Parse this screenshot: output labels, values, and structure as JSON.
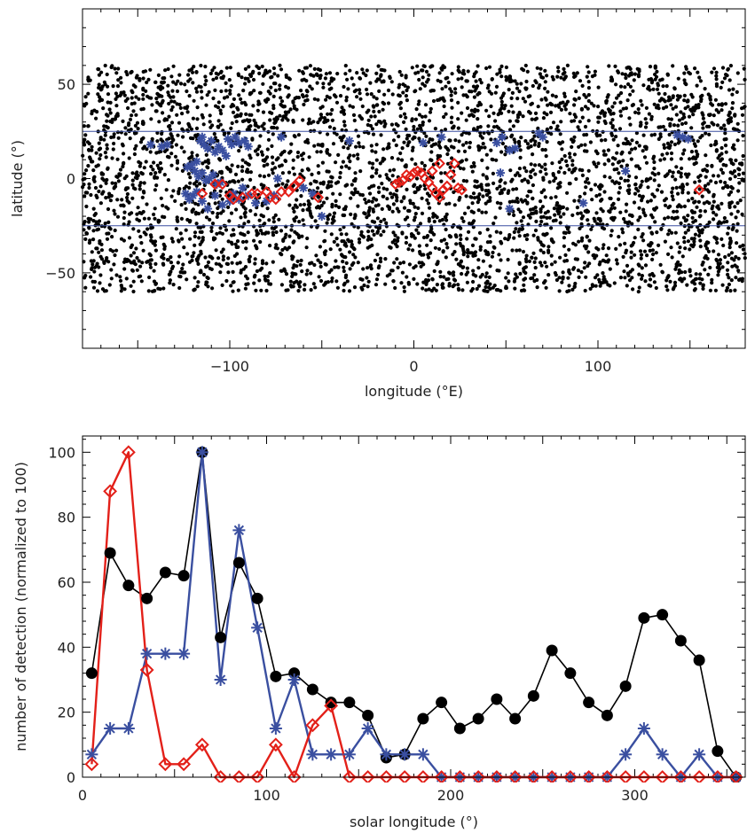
{
  "chart_data": [
    {
      "type": "scatter",
      "xlabel": "longitude (°E)",
      "ylabel": "latitude (°)",
      "xlim": [
        -180,
        180
      ],
      "ylim": [
        -90,
        90
      ],
      "xticks": [
        "-100",
        "0",
        "100"
      ],
      "yticks": [
        "-50",
        "0",
        "50"
      ],
      "reference_lines_y": [
        25,
        -25
      ],
      "colors": {
        "background_points": "#000000",
        "blue": "#3a4fa0",
        "red": "#e32019"
      },
      "background_points": {
        "marker": "filled-circle",
        "latitude_band": [
          -60,
          60
        ],
        "approx_count": 4200
      },
      "blue_points": [
        [
          -143,
          18
        ],
        [
          -137,
          17
        ],
        [
          -134,
          18
        ],
        [
          -123,
          6
        ],
        [
          -121,
          7
        ],
        [
          -118,
          9
        ],
        [
          -116,
          20
        ],
        [
          -115,
          22
        ],
        [
          -114,
          18
        ],
        [
          -112,
          16
        ],
        [
          -110,
          20
        ],
        [
          -108,
          14
        ],
        [
          -106,
          17
        ],
        [
          -104,
          15
        ],
        [
          -102,
          12
        ],
        [
          -101,
          21
        ],
        [
          -99,
          18
        ],
        [
          -97,
          22
        ],
        [
          -95,
          19
        ],
        [
          -92,
          20
        ],
        [
          -90,
          17
        ],
        [
          -119,
          4
        ],
        [
          -117,
          1
        ],
        [
          -115,
          3
        ],
        [
          -113,
          -1
        ],
        [
          -111,
          0
        ],
        [
          -109,
          2
        ],
        [
          -107,
          -3
        ],
        [
          -105,
          -2
        ],
        [
          -124,
          -8
        ],
        [
          -122,
          -11
        ],
        [
          -120,
          -9
        ],
        [
          -118,
          -7
        ],
        [
          -115,
          -12
        ],
        [
          -112,
          -16
        ],
        [
          -108,
          -9
        ],
        [
          -104,
          -14
        ],
        [
          -100,
          -12
        ],
        [
          -98,
          -8
        ],
        [
          -95,
          -11
        ],
        [
          -93,
          -5
        ],
        [
          -90,
          -9
        ],
        [
          -86,
          -13
        ],
        [
          -80,
          -12
        ],
        [
          -76,
          -9
        ],
        [
          -74,
          0
        ],
        [
          -72,
          22
        ],
        [
          -60,
          -5
        ],
        [
          -55,
          -8
        ],
        [
          -50,
          -20
        ],
        [
          -35,
          20
        ],
        [
          5,
          19
        ],
        [
          15,
          22
        ],
        [
          45,
          19
        ],
        [
          48,
          22
        ],
        [
          47,
          3
        ],
        [
          52,
          -16
        ],
        [
          52,
          15
        ],
        [
          55,
          16
        ],
        [
          68,
          24
        ],
        [
          70,
          22
        ],
        [
          92,
          -13
        ],
        [
          143,
          23
        ],
        [
          146,
          22
        ],
        [
          149,
          21
        ],
        [
          115,
          4
        ]
      ],
      "red_points": [
        [
          -115,
          -8
        ],
        [
          -108,
          -3
        ],
        [
          -104,
          -3
        ],
        [
          -100,
          -9
        ],
        [
          -98,
          -11
        ],
        [
          -93,
          -10
        ],
        [
          -88,
          -8
        ],
        [
          -85,
          -8
        ],
        [
          -80,
          -7
        ],
        [
          -78,
          -10
        ],
        [
          -75,
          -11
        ],
        [
          -72,
          -7
        ],
        [
          -68,
          -7
        ],
        [
          -65,
          -4
        ],
        [
          -62,
          -1
        ],
        [
          -52,
          -10
        ],
        [
          -10,
          -3
        ],
        [
          -8,
          -2
        ],
        [
          -6,
          -1
        ],
        [
          -4,
          2
        ],
        [
          -2,
          1
        ],
        [
          0,
          3
        ],
        [
          2,
          4
        ],
        [
          4,
          3
        ],
        [
          6,
          0
        ],
        [
          8,
          -2
        ],
        [
          10,
          -5
        ],
        [
          12,
          -8
        ],
        [
          14,
          -10
        ],
        [
          16,
          -6
        ],
        [
          18,
          -4
        ],
        [
          20,
          2
        ],
        [
          22,
          8
        ],
        [
          14,
          8
        ],
        [
          10,
          4
        ],
        [
          24,
          -5
        ],
        [
          26,
          -6
        ],
        [
          155,
          -6
        ]
      ]
    },
    {
      "type": "line",
      "xlabel": "solar longitude (°)",
      "ylabel": "number of detection (normalized to 100)",
      "xlim": [
        0,
        360
      ],
      "ylim": [
        0,
        105
      ],
      "xticks": [
        "0",
        "100",
        "200",
        "300"
      ],
      "yticks": [
        "0",
        "20",
        "40",
        "60",
        "80",
        "100"
      ],
      "series": [
        {
          "color": "#000000",
          "marker": "filled-circle",
          "x": [
            5,
            15,
            25,
            35,
            45,
            55,
            65,
            75,
            85,
            95,
            105,
            115,
            125,
            135,
            145,
            155,
            165,
            175,
            185,
            195,
            205,
            215,
            225,
            235,
            245,
            255,
            265,
            275,
            285,
            295,
            305,
            315,
            325,
            335,
            345,
            355
          ],
          "y": [
            32,
            69,
            59,
            55,
            63,
            62,
            100,
            43,
            66,
            55,
            31,
            32,
            27,
            23,
            23,
            19,
            6,
            7,
            18,
            23,
            15,
            18,
            24,
            18,
            25,
            39,
            32,
            23,
            19,
            28,
            49,
            50,
            42,
            36,
            8,
            0
          ]
        },
        {
          "color": "#3a4fa0",
          "marker": "asterisk",
          "x": [
            5,
            15,
            25,
            35,
            45,
            55,
            65,
            75,
            85,
            95,
            105,
            115,
            125,
            135,
            145,
            155,
            165,
            175,
            185,
            195,
            205,
            215,
            225,
            235,
            245,
            255,
            265,
            275,
            285,
            295,
            305,
            315,
            325,
            335,
            345,
            355
          ],
          "y": [
            7,
            15,
            15,
            38,
            38,
            38,
            100,
            30,
            76,
            46,
            15,
            30,
            7,
            7,
            7,
            15,
            7,
            7,
            7,
            0,
            0,
            0,
            0,
            0,
            0,
            0,
            0,
            0,
            0,
            7,
            15,
            7,
            0,
            7,
            0,
            0
          ]
        },
        {
          "color": "#e32019",
          "marker": "open-diamond",
          "x": [
            5,
            15,
            25,
            35,
            45,
            55,
            65,
            75,
            85,
            95,
            105,
            115,
            125,
            135,
            145,
            155,
            165,
            175,
            185,
            195,
            205,
            215,
            225,
            235,
            245,
            255,
            265,
            275,
            285,
            295,
            305,
            315,
            325,
            335,
            345,
            355
          ],
          "y": [
            4,
            88,
            100,
            33,
            4,
            4,
            10,
            0,
            0,
            0,
            10,
            0,
            16,
            22,
            0,
            0,
            0,
            0,
            0,
            0,
            0,
            0,
            0,
            0,
            0,
            0,
            0,
            0,
            0,
            0,
            0,
            0,
            0,
            0,
            0,
            0
          ]
        }
      ]
    }
  ]
}
